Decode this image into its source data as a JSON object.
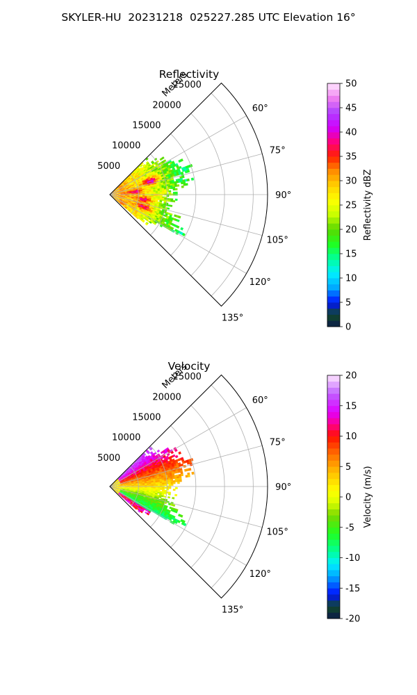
{
  "figure_title": "SKYLER-HU  20231218  025227.285 UTC Elevation 16°",
  "range_axis_label": "Meters",
  "chart_data": [
    {
      "type": "heatmap",
      "title": "Reflectivity",
      "projection": "polar-sector",
      "theta_ticks_deg": [
        60,
        75,
        90,
        105,
        120,
        135
      ],
      "theta_range_deg": [
        45,
        135
      ],
      "range_ticks_m": [
        5000,
        10000,
        15000,
        20000,
        25000
      ],
      "range_max_m": 27500,
      "data_extent_m": 15000,
      "grid": true,
      "colorbar": {
        "label": "Reflectivity dBZ",
        "min": 0,
        "max": 50,
        "ticks": [
          0,
          5,
          10,
          15,
          20,
          25,
          30,
          35,
          40,
          45,
          50
        ],
        "colormap": "pyart_HomeyerRainbow-like",
        "stops": [
          [
            0,
            "#0b1a4a"
          ],
          [
            2.5,
            "#114a2a"
          ],
          [
            5,
            "#0010ff"
          ],
          [
            8,
            "#00a8ff"
          ],
          [
            11,
            "#00f0ff"
          ],
          [
            14,
            "#00ff9a"
          ],
          [
            17,
            "#20ff20"
          ],
          [
            20,
            "#5ad800"
          ],
          [
            23,
            "#c8ff00"
          ],
          [
            26,
            "#ffff00"
          ],
          [
            29,
            "#ffd000"
          ],
          [
            32,
            "#ff8c00"
          ],
          [
            35,
            "#ff2000"
          ],
          [
            38,
            "#ff0080"
          ],
          [
            41,
            "#d000ff"
          ],
          [
            44,
            "#b040ff"
          ],
          [
            47,
            "#f080f0"
          ],
          [
            50,
            "#ffe8ff"
          ]
        ]
      },
      "features": [
        {
          "theta_deg": 72,
          "r_m": 7500,
          "value_dbz": 42
        },
        {
          "theta_deg": 84,
          "r_m": 4500,
          "value_dbz": 36
        },
        {
          "theta_deg": 98,
          "r_m": 6000,
          "value_dbz": 37
        },
        {
          "theta_deg": 110,
          "r_m": 6500,
          "value_dbz": 38
        },
        {
          "theta_deg": 90,
          "r_m": 9000,
          "value_dbz": 28
        }
      ]
    },
    {
      "type": "heatmap",
      "title": "Velocity",
      "projection": "polar-sector",
      "theta_ticks_deg": [
        60,
        75,
        90,
        105,
        120,
        135
      ],
      "theta_range_deg": [
        45,
        135
      ],
      "range_ticks_m": [
        5000,
        10000,
        15000,
        20000,
        25000
      ],
      "range_max_m": 27500,
      "data_extent_m": 15000,
      "grid": true,
      "colorbar": {
        "label": "Velocity (m/s)",
        "min": -20,
        "max": 20,
        "ticks": [
          -20,
          -15,
          -10,
          -5,
          0,
          5,
          10,
          15,
          20
        ],
        "colormap": "pyart_BuDRd18-like",
        "stops": [
          [
            -20,
            "#0b1a4a"
          ],
          [
            -18,
            "#114a2a"
          ],
          [
            -16,
            "#0010ff"
          ],
          [
            -13,
            "#00a8ff"
          ],
          [
            -11,
            "#00f0ff"
          ],
          [
            -9,
            "#00ff9a"
          ],
          [
            -6,
            "#20ff20"
          ],
          [
            -3,
            "#7ad800"
          ],
          [
            -1,
            "#d8ff00"
          ],
          [
            1,
            "#ffff00"
          ],
          [
            4,
            "#ffc000"
          ],
          [
            7,
            "#ff7000"
          ],
          [
            10,
            "#ff1000"
          ],
          [
            12,
            "#ff0090"
          ],
          [
            14,
            "#e000ff"
          ],
          [
            17,
            "#c060ff"
          ],
          [
            20,
            "#ffe8ff"
          ]
        ]
      },
      "features": [
        {
          "theta_deg": 65,
          "r_m": 12000,
          "value_ms": 14
        },
        {
          "theta_deg": 80,
          "r_m": 9000,
          "value_ms": 9
        },
        {
          "theta_deg": 92,
          "r_m": 7000,
          "value_ms": 1
        },
        {
          "theta_deg": 105,
          "r_m": 8000,
          "value_ms": -5
        },
        {
          "theta_deg": 118,
          "r_m": 10000,
          "value_ms": -11
        },
        {
          "theta_deg": 127,
          "r_m": 3000,
          "value_ms": 14
        }
      ]
    }
  ]
}
